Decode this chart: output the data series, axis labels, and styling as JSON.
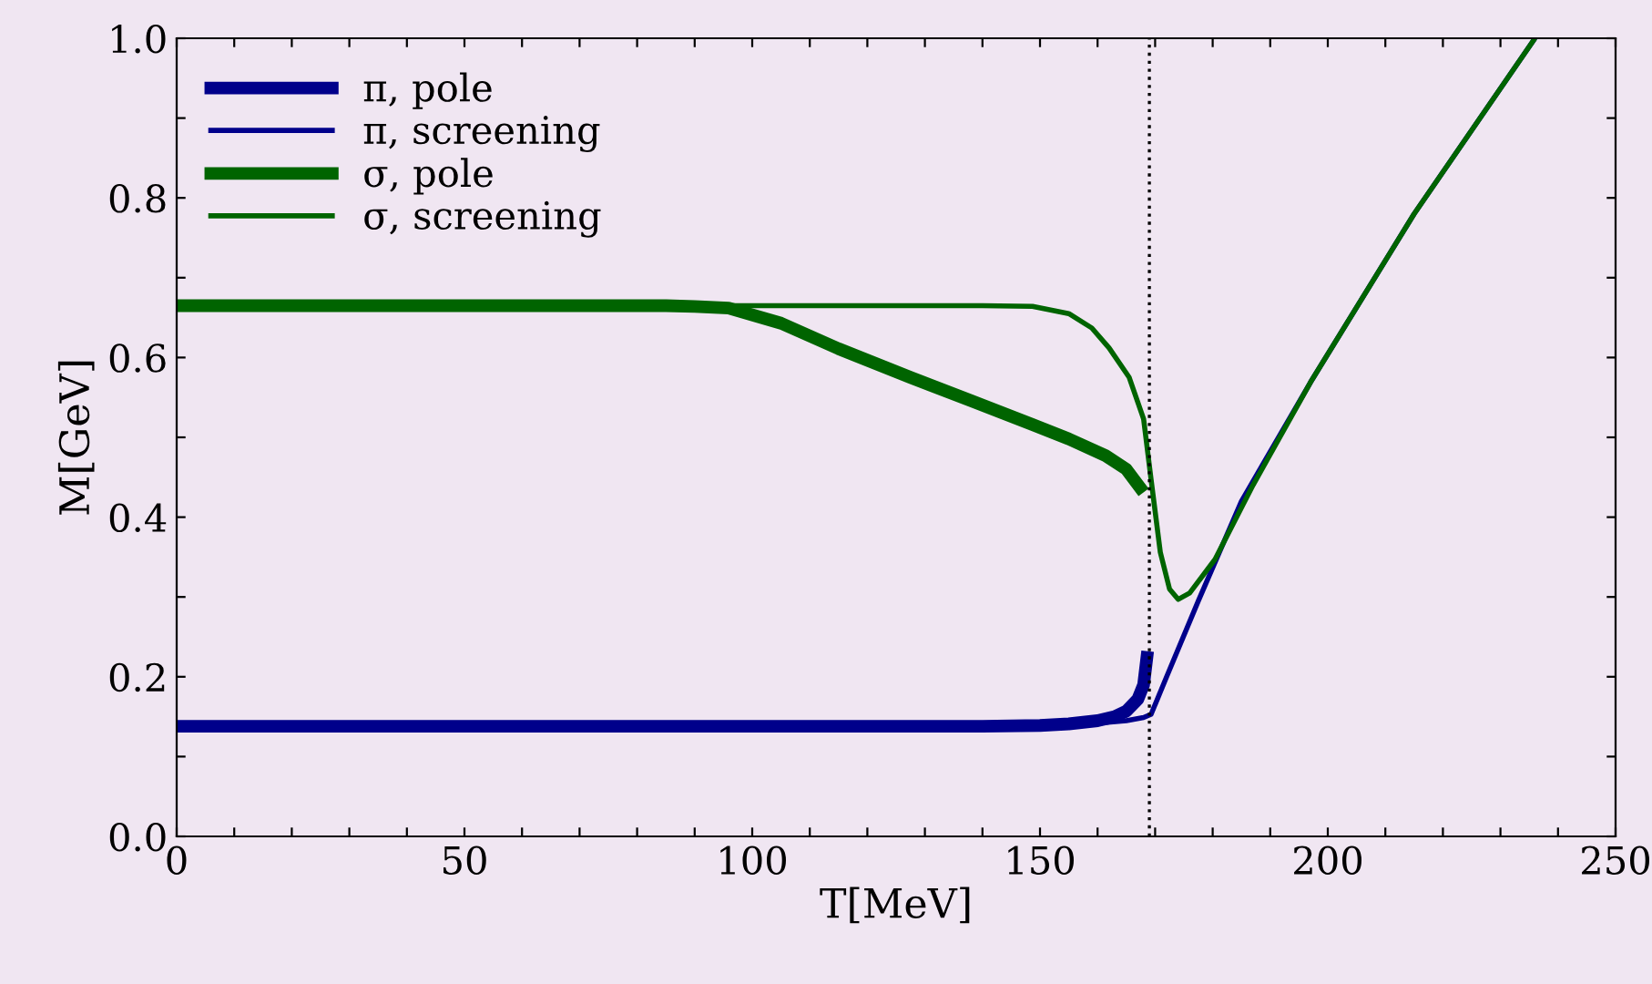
{
  "chart_data": {
    "type": "line",
    "xlabel": "T[MeV]",
    "ylabel": "M[GeV]",
    "xlim": [
      0,
      250
    ],
    "ylim": [
      0,
      1.0
    ],
    "xticks": [
      0,
      {
        "value": 10,
        "label": null
      },
      {
        "value": 20,
        "label": null
      },
      {
        "value": 30,
        "label": null
      },
      {
        "value": 40,
        "label": null
      },
      50,
      {
        "value": 60,
        "label": null
      },
      {
        "value": 70,
        "label": null
      },
      {
        "value": 80,
        "label": null
      },
      {
        "value": 90,
        "label": null
      },
      100,
      {
        "value": 110,
        "label": null
      },
      {
        "value": 120,
        "label": null
      },
      {
        "value": 130,
        "label": null
      },
      {
        "value": 140,
        "label": null
      },
      150,
      {
        "value": 160,
        "label": null
      },
      {
        "value": 170,
        "label": null
      },
      {
        "value": 180,
        "label": null
      },
      {
        "value": 190,
        "label": null
      },
      200,
      {
        "value": 210,
        "label": null
      },
      {
        "value": 220,
        "label": null
      },
      {
        "value": 230,
        "label": null
      },
      {
        "value": 240,
        "label": null
      },
      250
    ],
    "yticks": [
      {
        "value": 0,
        "label": "0.0"
      },
      {
        "value": 0.1,
        "label": null
      },
      0.2,
      {
        "value": 0.3,
        "label": null
      },
      0.4,
      {
        "value": 0.5,
        "label": null
      },
      0.6,
      {
        "value": 0.7,
        "label": null
      },
      0.8,
      {
        "value": 0.9,
        "label": null
      },
      {
        "value": 1.0,
        "label": "1.0"
      }
    ],
    "grid": false,
    "legend": "top left",
    "line_style": "solid",
    "marker": "none",
    "ref_lines": [
      {
        "axis": "x",
        "value": 169,
        "color": "#000000",
        "line_style": "dotted"
      }
    ],
    "series": [
      {
        "name": "π, pole",
        "color": "#00008b",
        "x": [
          0,
          50,
          100,
          140,
          150,
          155,
          160,
          163,
          165,
          167,
          168,
          168.7
        ],
        "values": [
          0.138,
          0.138,
          0.138,
          0.138,
          0.139,
          0.141,
          0.145,
          0.15,
          0.157,
          0.172,
          0.19,
          0.232
        ]
      },
      {
        "name": "π, screening",
        "color": "#00008b",
        "x": [
          0,
          100,
          150,
          160,
          165,
          168,
          169.3,
          172,
          177.5,
          185,
          197,
          215,
          236
        ],
        "values": [
          0.138,
          0.138,
          0.139,
          0.142,
          0.145,
          0.149,
          0.153,
          0.2,
          0.295,
          0.42,
          0.569,
          0.78,
          1.0
        ]
      },
      {
        "name": "σ, pole",
        "color": "#006400",
        "x": [
          0,
          50,
          85,
          90,
          95.9,
          105,
          115,
          127.5,
          138,
          148.7,
          155,
          161.4,
          165,
          168
        ],
        "values": [
          0.665,
          0.665,
          0.665,
          0.664,
          0.662,
          0.643,
          0.611,
          0.575,
          0.546,
          0.516,
          0.498,
          0.477,
          0.46,
          0.431
        ]
      },
      {
        "name": "σ, screening",
        "color": "#006400",
        "x": [
          0,
          100,
          140,
          148.7,
          155,
          159,
          162,
          165.5,
          168,
          169.3,
          170.9,
          172.5,
          174,
          176,
          180.4,
          187,
          197,
          215,
          236
        ],
        "values": [
          0.665,
          0.665,
          0.665,
          0.664,
          0.655,
          0.637,
          0.612,
          0.575,
          0.523,
          0.447,
          0.356,
          0.31,
          0.297,
          0.305,
          0.347,
          0.44,
          0.569,
          0.78,
          1.0
        ]
      }
    ]
  }
}
